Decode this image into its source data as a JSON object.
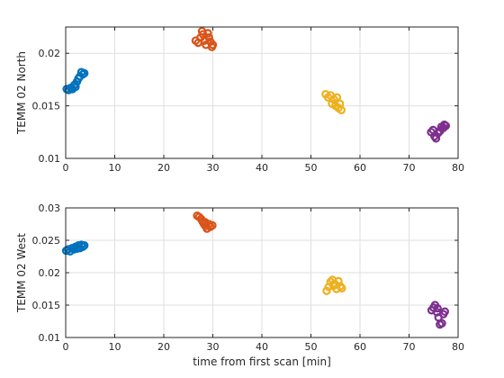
{
  "chart_data": [
    {
      "type": "scatter",
      "title": "",
      "xlabel": "",
      "ylabel": "TEMM 02 North",
      "xlim": [
        0,
        80
      ],
      "ylim": [
        0.01,
        0.0225
      ],
      "xticks": [
        0,
        10,
        20,
        30,
        40,
        50,
        60,
        70,
        80
      ],
      "xtick_labels": [
        "0",
        "10",
        "20",
        "30",
        "40",
        "50",
        "60",
        "70",
        "80"
      ],
      "yticks": [
        0.01,
        0.015,
        0.02
      ],
      "ytick_labels": [
        "0.01",
        "0.015",
        "0.02"
      ],
      "grid": true,
      "marker": "open-circle",
      "series": [
        {
          "color": "#0072BD",
          "points": [
            [
              0.2,
              0.0166
            ],
            [
              0.6,
              0.0165
            ],
            [
              1.0,
              0.0167
            ],
            [
              1.4,
              0.0166
            ],
            [
              1.8,
              0.017
            ],
            [
              2.0,
              0.0168
            ],
            [
              2.3,
              0.0173
            ],
            [
              2.6,
              0.0176
            ],
            [
              2.9,
              0.0178
            ],
            [
              3.2,
              0.0182
            ],
            [
              3.5,
              0.018
            ],
            [
              3.8,
              0.0181
            ]
          ]
        },
        {
          "color": "#D95319",
          "points": [
            [
              26.5,
              0.0212
            ],
            [
              27.0,
              0.021
            ],
            [
              27.5,
              0.0215
            ],
            [
              27.8,
              0.0221
            ],
            [
              28.0,
              0.0218
            ],
            [
              28.3,
              0.0212
            ],
            [
              28.6,
              0.0208
            ],
            [
              29.0,
              0.0219
            ],
            [
              29.2,
              0.0215
            ],
            [
              29.5,
              0.0211
            ],
            [
              29.8,
              0.0206
            ],
            [
              30.0,
              0.0208
            ]
          ]
        },
        {
          "color": "#EDB120",
          "points": [
            [
              53.0,
              0.0161
            ],
            [
              53.5,
              0.0158
            ],
            [
              54.0,
              0.016
            ],
            [
              54.3,
              0.0152
            ],
            [
              54.7,
              0.0156
            ],
            [
              55.0,
              0.015
            ],
            [
              55.3,
              0.0158
            ],
            [
              55.6,
              0.0148
            ],
            [
              55.9,
              0.0152
            ],
            [
              56.2,
              0.0146
            ]
          ]
        },
        {
          "color": "#7E2F8E",
          "points": [
            [
              74.5,
              0.0125
            ],
            [
              74.9,
              0.0127
            ],
            [
              75.2,
              0.0121
            ],
            [
              75.5,
              0.0119
            ],
            [
              75.9,
              0.0124
            ],
            [
              76.3,
              0.0126
            ],
            [
              76.6,
              0.013
            ],
            [
              77.0,
              0.0129
            ],
            [
              77.2,
              0.0132
            ],
            [
              77.5,
              0.0131
            ]
          ]
        }
      ]
    },
    {
      "type": "scatter",
      "title": "",
      "xlabel": "time from first scan [min]",
      "ylabel": "TEMM 02 West",
      "xlim": [
        0,
        80
      ],
      "ylim": [
        0.01,
        0.03
      ],
      "xticks": [
        0,
        10,
        20,
        30,
        40,
        50,
        60,
        70,
        80
      ],
      "xtick_labels": [
        "0",
        "10",
        "20",
        "30",
        "40",
        "50",
        "60",
        "70",
        "80"
      ],
      "yticks": [
        0.01,
        0.015,
        0.02,
        0.025,
        0.03
      ],
      "ytick_labels": [
        "0.01",
        "0.015",
        "0.02",
        "0.025",
        "0.03"
      ],
      "grid": true,
      "marker": "open-circle",
      "series": [
        {
          "color": "#0072BD",
          "points": [
            [
              0.1,
              0.0234
            ],
            [
              0.5,
              0.0236
            ],
            [
              0.9,
              0.0233
            ],
            [
              1.3,
              0.0238
            ],
            [
              1.7,
              0.0236
            ],
            [
              2.0,
              0.024
            ],
            [
              2.3,
              0.0237
            ],
            [
              2.6,
              0.0242
            ],
            [
              2.9,
              0.0238
            ],
            [
              3.2,
              0.0243
            ],
            [
              3.5,
              0.024
            ],
            [
              3.8,
              0.0242
            ]
          ]
        },
        {
          "color": "#D95319",
          "points": [
            [
              26.8,
              0.0288
            ],
            [
              27.2,
              0.0286
            ],
            [
              27.6,
              0.0283
            ],
            [
              27.9,
              0.0279
            ],
            [
              28.2,
              0.0275
            ],
            [
              28.5,
              0.0272
            ],
            [
              28.8,
              0.0268
            ],
            [
              29.2,
              0.0275
            ],
            [
              29.5,
              0.0271
            ],
            [
              29.9,
              0.0273
            ],
            [
              28.4,
              0.0278
            ]
          ]
        },
        {
          "color": "#EDB120",
          "points": [
            [
              53.2,
              0.0172
            ],
            [
              53.6,
              0.0178
            ],
            [
              54.0,
              0.0186
            ],
            [
              54.4,
              0.0189
            ],
            [
              54.8,
              0.0183
            ],
            [
              55.2,
              0.0175
            ],
            [
              55.6,
              0.0187
            ],
            [
              56.0,
              0.0179
            ],
            [
              56.3,
              0.0176
            ],
            [
              54.6,
              0.018
            ]
          ]
        },
        {
          "color": "#7E2F8E",
          "points": [
            [
              74.6,
              0.0142
            ],
            [
              75.0,
              0.0146
            ],
            [
              75.3,
              0.015
            ],
            [
              75.7,
              0.0139
            ],
            [
              76.0,
              0.0131
            ],
            [
              76.3,
              0.012
            ],
            [
              76.7,
              0.0122
            ],
            [
              77.0,
              0.0136
            ],
            [
              77.3,
              0.014
            ],
            [
              75.8,
              0.0145
            ]
          ]
        }
      ]
    }
  ]
}
